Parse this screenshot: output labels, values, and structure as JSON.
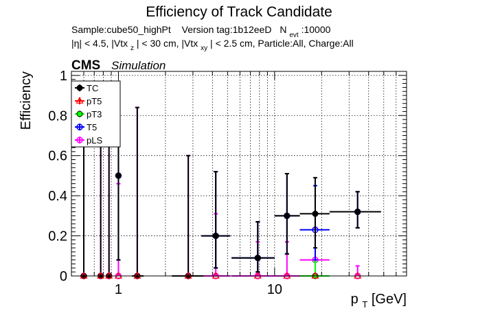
{
  "chart_data": {
    "type": "scatter",
    "title": "Efficiency of Track Candidate",
    "info_line1": {
      "sample": "Sample:cube50_highPt",
      "version": "Version tag:1b12eeD",
      "nevt_label": "N",
      "nevt_sub": "evt",
      "nevt_value": ":10000"
    },
    "info_line2": {
      "p1": "|η| < 4.5, |Vtx",
      "s1": "z",
      "p2": "| < 30 cm, |Vtx",
      "s2": "xy",
      "p3": "| < 2.5 cm, Particle:All, Charge:All"
    },
    "cms_label": "CMS",
    "simulation_label": "Simulation",
    "xlabel_main": "p",
    "xlabel_sub": "T",
    "xlabel_unit": " [GeV]",
    "ylabel": "Efficiency",
    "x_scale": "log",
    "xlim": [
      0.5,
      70
    ],
    "ylim": [
      0,
      1.02
    ],
    "x_ticks": [
      {
        "value": 1,
        "label": "1"
      },
      {
        "value": 10,
        "label": "10"
      }
    ],
    "y_ticks": [
      {
        "value": 0,
        "label": "0"
      },
      {
        "value": 0.2,
        "label": "0.2"
      },
      {
        "value": 0.4,
        "label": "0.4"
      },
      {
        "value": 0.6,
        "label": "0.6"
      },
      {
        "value": 0.8,
        "label": "0.8"
      },
      {
        "value": 1,
        "label": "1"
      }
    ],
    "grid": true,
    "legend_position": "top-left",
    "series": [
      {
        "name": "TC",
        "color": "#000000",
        "marker": "filled-circle",
        "points": [
          {
            "x": 0.6,
            "y": 0,
            "xerr": [
              0.57,
              0.63
            ],
            "yerr": [
              0,
              0.84
            ]
          },
          {
            "x": 0.77,
            "y": 0,
            "xerr": [
              0.75,
              0.79
            ],
            "yerr": [
              0,
              0.84
            ]
          },
          {
            "x": 0.87,
            "y": 0,
            "xerr": [
              0.85,
              0.89
            ],
            "yerr": [
              0,
              0.84
            ]
          },
          {
            "x": 1.0,
            "y": 0.5,
            "xerr": [
              0.98,
              1.02
            ],
            "yerr": [
              0.08,
              0.92
            ]
          },
          {
            "x": 1.32,
            "y": 0,
            "xerr": [
              1.22,
              1.45
            ],
            "yerr": [
              0,
              0.84
            ]
          },
          {
            "x": 2.8,
            "y": 0,
            "xerr": [
              2.2,
              3.5
            ],
            "yerr": [
              0,
              0.6
            ]
          },
          {
            "x": 4.2,
            "y": 0.2,
            "xerr": [
              3.4,
              5.2
            ],
            "yerr": [
              0.04,
              0.52
            ]
          },
          {
            "x": 7.8,
            "y": 0.09,
            "xerr": [
              5.3,
              10.0
            ],
            "yerr": [
              0.02,
              0.27
            ]
          },
          {
            "x": 12.0,
            "y": 0.3,
            "xerr": [
              10.0,
              14.5
            ],
            "yerr": [
              0.11,
              0.51
            ]
          },
          {
            "x": 18.2,
            "y": 0.31,
            "xerr": [
              14.5,
              22.5
            ],
            "yerr": [
              0.14,
              0.49
            ]
          },
          {
            "x": 34.0,
            "y": 0.32,
            "xerr": [
              22.5,
              48.0
            ],
            "yerr": [
              0.24,
              0.42
            ]
          }
        ]
      },
      {
        "name": "pT5",
        "color": "#ff0000",
        "marker": "open-triangle",
        "points": [
          {
            "x": 0.6,
            "y": 0
          },
          {
            "x": 0.77,
            "y": 0
          },
          {
            "x": 0.87,
            "y": 0
          },
          {
            "x": 1.0,
            "y": 0
          },
          {
            "x": 1.32,
            "y": 0
          },
          {
            "x": 2.8,
            "y": 0
          },
          {
            "x": 4.2,
            "y": 0
          },
          {
            "x": 7.8,
            "y": 0
          },
          {
            "x": 12.0,
            "y": 0
          },
          {
            "x": 18.2,
            "y": 0
          },
          {
            "x": 34.0,
            "y": 0
          }
        ]
      },
      {
        "name": "pT3",
        "color": "#00ff00",
        "marker": "filled-circle",
        "points": [
          {
            "x": 18.2,
            "y": 0,
            "xerr": [
              14.5,
              22.5
            ],
            "yerr": [
              0,
              0.07
            ]
          }
        ]
      },
      {
        "name": "T5",
        "color": "#0000ff",
        "marker": "open-circle",
        "points": [
          {
            "x": 1.0,
            "y": 0.5,
            "xerr": [
              0.98,
              1.02
            ],
            "yerr": [
              0.08,
              0.92
            ]
          },
          {
            "x": 4.2,
            "y": 0.2,
            "xerr": [
              3.4,
              5.2
            ],
            "yerr": [
              0.04,
              0.52
            ]
          },
          {
            "x": 7.8,
            "y": 0.09,
            "xerr": [
              5.3,
              10.0
            ],
            "yerr": [
              0.02,
              0.27
            ]
          },
          {
            "x": 12.0,
            "y": 0.3,
            "xerr": [
              10.0,
              14.5
            ],
            "yerr": [
              0.11,
              0.51
            ]
          },
          {
            "x": 18.2,
            "y": 0.23,
            "xerr": [
              14.5,
              22.5
            ],
            "yerr": [
              0.08,
              0.45
            ]
          },
          {
            "x": 34.0,
            "y": 0.32,
            "xerr": [
              22.5,
              48.0
            ],
            "yerr": [
              0.24,
              0.42
            ]
          }
        ]
      },
      {
        "name": "pLS",
        "color": "#ff00ff",
        "marker": "open-circle",
        "points": [
          {
            "x": 0.6,
            "y": 0,
            "yerr": [
              0,
              0.84
            ]
          },
          {
            "x": 0.77,
            "y": 0,
            "yerr": [
              0,
              0.84
            ]
          },
          {
            "x": 0.87,
            "y": 0,
            "yerr": [
              0,
              0.84
            ]
          },
          {
            "x": 1.0,
            "y": 0,
            "yerr": [
              0,
              0.46
            ]
          },
          {
            "x": 1.32,
            "y": 0,
            "yerr": [
              0,
              0.84
            ]
          },
          {
            "x": 2.8,
            "y": 0,
            "xerr": [
              2.2,
              3.5
            ],
            "yerr": [
              0,
              0.6
            ]
          },
          {
            "x": 4.2,
            "y": 0,
            "xerr": [
              3.4,
              5.2
            ],
            "yerr": [
              0,
              0.31
            ]
          },
          {
            "x": 7.8,
            "y": 0,
            "xerr": [
              5.3,
              10.0
            ],
            "yerr": [
              0,
              0.17
            ]
          },
          {
            "x": 12.0,
            "y": 0,
            "xerr": [
              10.0,
              14.5
            ],
            "yerr": [
              0,
              0.17
            ]
          },
          {
            "x": 18.2,
            "y": 0.08,
            "xerr": [
              14.5,
              22.5
            ],
            "yerr": [
              0.01,
              0.24
            ]
          },
          {
            "x": 34.0,
            "y": 0,
            "yerr": [
              0,
              0.05
            ]
          }
        ]
      }
    ]
  }
}
